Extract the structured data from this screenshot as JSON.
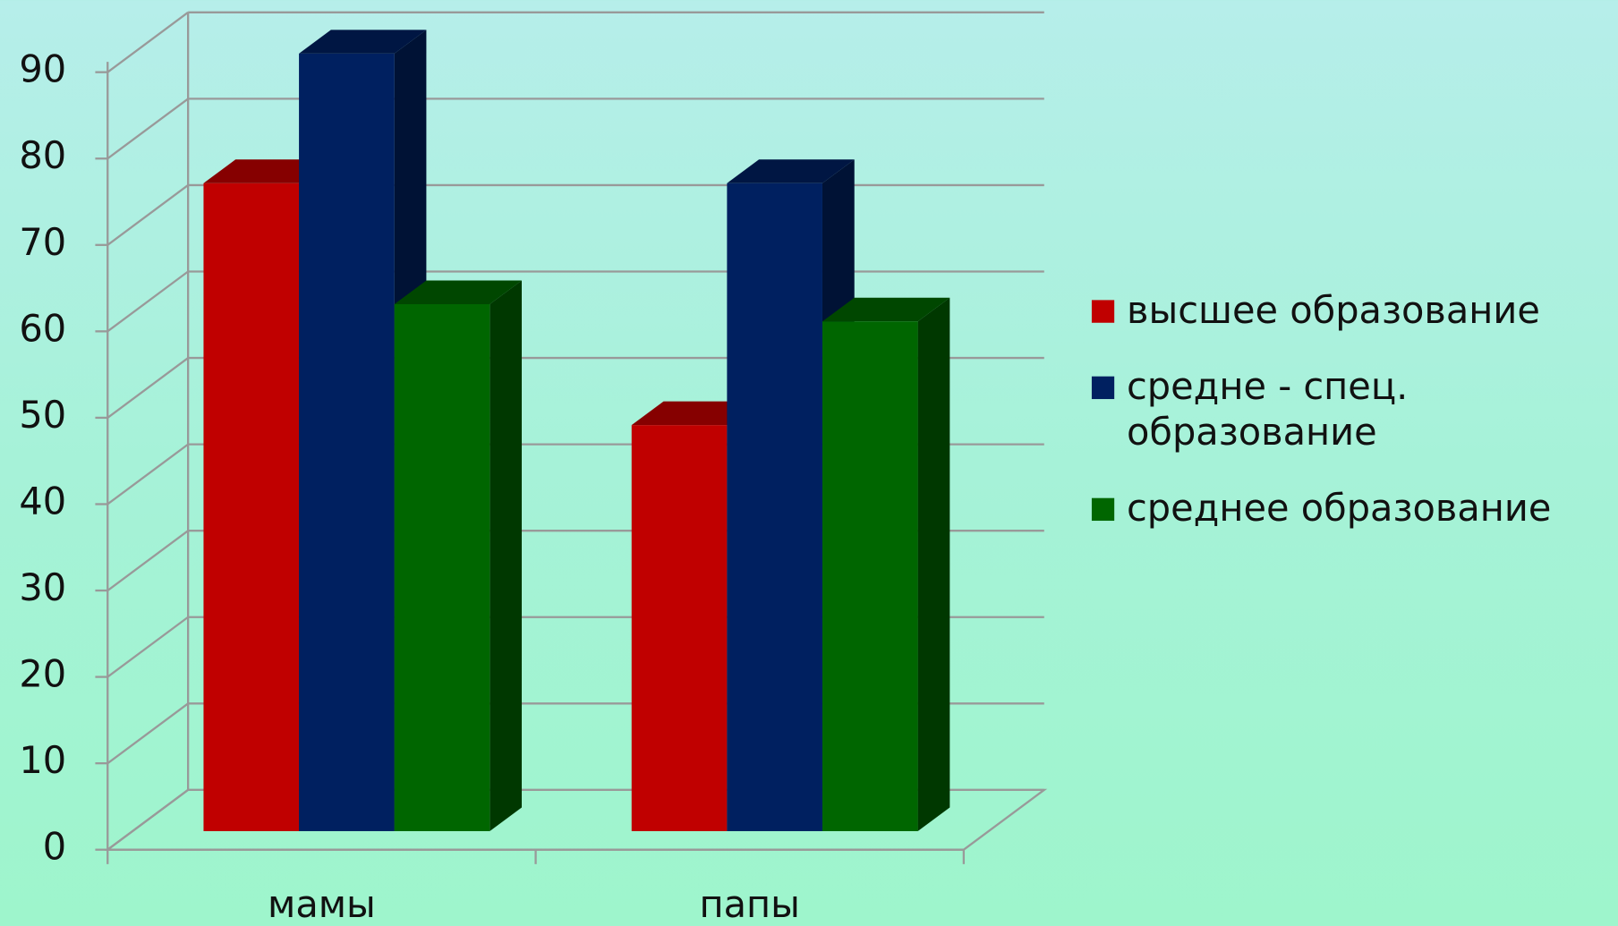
{
  "chart_data": {
    "type": "bar3d",
    "categories": [
      "мамы",
      "папы"
    ],
    "series": [
      {
        "name": "высшее образование",
        "color": "#c00000",
        "values": [
          75,
          47
        ]
      },
      {
        "name": "средне - спец. образование",
        "color": "#002060",
        "values": [
          90,
          75
        ]
      },
      {
        "name": "среднее образование",
        "color": "#006600",
        "values": [
          61,
          59
        ]
      }
    ],
    "ylim": [
      0,
      90
    ],
    "yticks": [
      0,
      10,
      20,
      30,
      40,
      50,
      60,
      70,
      80,
      90
    ],
    "grid": true
  }
}
